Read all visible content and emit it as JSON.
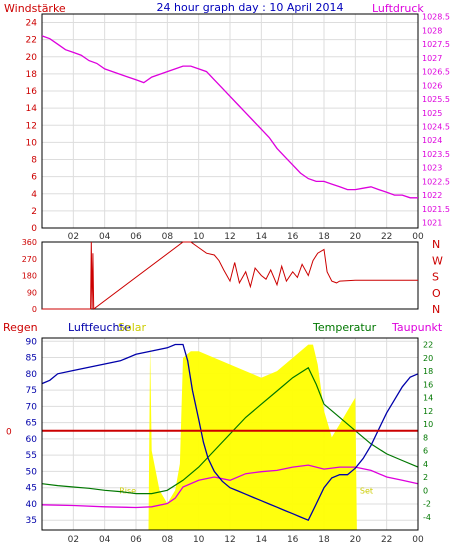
{
  "header": {
    "title": "24 hour graph day : 10 April 2014",
    "left_label": "Windstärke",
    "right_label": "Luftdruck"
  },
  "colors": {
    "pressure": "#dd00dd",
    "wind_dir": "#cc0000",
    "humidity": "#0000aa",
    "solar": "#ffff00",
    "temperature": "#007700",
    "dewpoint": "#dd00dd",
    "rain": "#cc0000",
    "grid": "#dddddd",
    "frame": "#000000",
    "title": "#0000bb"
  },
  "chart_data": [
    {
      "type": "line",
      "panel": "wind-pressure",
      "title": "24 hour graph day : 10 April 2014",
      "x_ticks": [
        "02",
        "04",
        "06",
        "08",
        "10",
        "12",
        "14",
        "16",
        "18",
        "20",
        "22",
        "00"
      ],
      "x_range_hours": [
        0,
        24
      ],
      "grid": true,
      "y_left": {
        "label": "Windstärke",
        "range": [
          0,
          25
        ],
        "ticks": [
          "0",
          "2",
          "4",
          "6",
          "8",
          "10",
          "12",
          "14",
          "16",
          "18",
          "20",
          "22",
          "24"
        ]
      },
      "y_right": {
        "label": "Luftdruck",
        "range": [
          1020.8,
          1028.6
        ],
        "ticks": [
          "1021",
          "1021.5",
          "1022",
          "1022.5",
          "1023",
          "1023.5",
          "1024",
          "1024.5",
          "1025",
          "1025.5",
          "1026",
          "1026.5",
          "1027",
          "1027.5",
          "1028",
          "1028.5"
        ]
      },
      "series": [
        {
          "name": "Luftdruck",
          "axis": "right",
          "x": [
            0,
            0.5,
            1,
            1.5,
            2,
            2.5,
            3,
            3.5,
            4,
            4.5,
            5,
            5.5,
            6,
            6.5,
            7,
            7.5,
            8,
            8.5,
            9,
            9.5,
            10,
            10.5,
            11,
            11.5,
            12,
            12.5,
            13,
            13.5,
            14,
            14.5,
            15,
            15.5,
            16,
            16.5,
            17,
            17.5,
            18,
            18.5,
            19,
            19.5,
            20,
            20.5,
            21,
            21.5,
            22,
            22.5,
            23,
            23.5,
            24
          ],
          "y": [
            1027.8,
            1027.7,
            1027.5,
            1027.3,
            1027.2,
            1027.1,
            1026.9,
            1026.8,
            1026.6,
            1026.5,
            1026.4,
            1026.3,
            1026.2,
            1026.1,
            1026.3,
            1026.4,
            1026.5,
            1026.6,
            1026.7,
            1026.7,
            1026.6,
            1026.5,
            1026.2,
            1025.9,
            1025.6,
            1025.3,
            1025.0,
            1024.7,
            1024.4,
            1024.1,
            1023.7,
            1023.4,
            1023.1,
            1022.8,
            1022.6,
            1022.5,
            1022.5,
            1022.4,
            1022.3,
            1022.2,
            1022.2,
            1022.25,
            1022.3,
            1022.2,
            1022.1,
            1022.0,
            1022.0,
            1021.9,
            1021.9
          ]
        }
      ]
    },
    {
      "type": "line",
      "panel": "wind-direction",
      "x_range_hours": [
        0,
        24
      ],
      "grid": false,
      "y_left": {
        "range": [
          0,
          360
        ],
        "ticks": [
          "0",
          "90",
          "180",
          "270",
          "360"
        ]
      },
      "compass_labels": [
        "N",
        "W",
        "S",
        "O",
        "N"
      ],
      "series": [
        {
          "name": "Windrichtung",
          "x": [
            0,
            3.1,
            3.15,
            3.2,
            3.25,
            3.3,
            9.0,
            9.5,
            10.0,
            10.5,
            11.0,
            11.3,
            11.6,
            12.0,
            12.3,
            12.6,
            13.0,
            13.3,
            13.6,
            14.0,
            14.3,
            14.6,
            15.0,
            15.3,
            15.6,
            16.0,
            16.3,
            16.6,
            17.0,
            17.3,
            17.6,
            18.0,
            18.2,
            18.5,
            18.8,
            19.0,
            20.0,
            21.0,
            22.0,
            23.0,
            24.0
          ],
          "y": [
            0,
            0,
            360,
            0,
            300,
            0,
            360,
            360,
            330,
            300,
            290,
            260,
            210,
            150,
            250,
            140,
            200,
            120,
            220,
            180,
            160,
            210,
            130,
            230,
            150,
            200,
            170,
            240,
            180,
            260,
            300,
            320,
            200,
            150,
            140,
            150,
            155,
            155,
            155,
            155,
            155
          ]
        }
      ]
    },
    {
      "type": "line",
      "panel": "rain-humidity-temperature",
      "x_ticks": [
        "02",
        "04",
        "06",
        "08",
        "10",
        "12",
        "14",
        "16",
        "18",
        "20",
        "22",
        "00"
      ],
      "x_range_hours": [
        0,
        24
      ],
      "grid": true,
      "labels": {
        "rain": "Regen",
        "humidity": "Luftfeuchte",
        "solar": "Solar",
        "temperature": "Temperatur",
        "dewpoint": "Taupunkt"
      },
      "y_humidity": {
        "range": [
          32,
          91
        ],
        "ticks": [
          "35",
          "40",
          "45",
          "50",
          "55",
          "60",
          "65",
          "70",
          "75",
          "80",
          "85",
          "90"
        ]
      },
      "y_temperature": {
        "range": [
          -6,
          23
        ],
        "ticks": [
          "-4",
          "-2",
          "0",
          "2",
          "4",
          "6",
          "8",
          "10",
          "12",
          "14",
          "16",
          "18",
          "20",
          "22"
        ]
      },
      "rain_label": "0",
      "rain_value": 0,
      "sun_markers": {
        "rise_label": "Rise",
        "set_label": "Set",
        "rise_time": 6.9,
        "set_time": 20.1
      },
      "series": [
        {
          "name": "Luftfeuchte",
          "axis": "humidity",
          "x": [
            0,
            0.5,
            1,
            2,
            3,
            4,
            5,
            6,
            7,
            8,
            8.5,
            9,
            9.3,
            9.6,
            10,
            10.3,
            10.6,
            11,
            11.5,
            12,
            12.5,
            13,
            13.5,
            14,
            14.5,
            15,
            15.5,
            16,
            16.5,
            17,
            17.5,
            18,
            18.5,
            19,
            19.5,
            20,
            20.5,
            21,
            21.5,
            22,
            22.5,
            23,
            23.5,
            24
          ],
          "y": [
            77,
            78,
            80,
            81,
            82,
            83,
            84,
            86,
            87,
            88,
            89,
            89,
            84,
            75,
            66,
            59,
            54,
            50,
            47,
            45,
            44,
            43,
            42,
            41,
            40,
            39,
            38,
            37,
            36,
            35,
            40,
            45,
            48,
            49,
            49,
            51,
            54,
            58,
            63,
            68,
            72,
            76,
            79,
            80
          ]
        },
        {
          "name": "Temperatur",
          "axis": "temperature",
          "x": [
            0,
            1,
            2,
            3,
            4,
            5,
            6,
            7,
            8,
            9,
            10,
            11,
            12,
            13,
            14,
            15,
            16,
            17,
            17.5,
            18,
            19,
            20,
            21,
            22,
            23,
            24
          ],
          "y": [
            1.0,
            0.7,
            0.5,
            0.3,
            0.0,
            -0.2,
            -0.5,
            -0.5,
            0.0,
            1.5,
            3.5,
            6.0,
            8.5,
            11.0,
            13.0,
            15.0,
            17.0,
            18.5,
            16.0,
            13.0,
            11.0,
            9.0,
            7.0,
            5.5,
            4.5,
            3.5
          ]
        },
        {
          "name": "Taupunkt",
          "axis": "temperature",
          "x": [
            0,
            2,
            4,
            6,
            7,
            8,
            8.5,
            9,
            10,
            11,
            12,
            13,
            14,
            15,
            16,
            17,
            18,
            19,
            20,
            21,
            22,
            23,
            24
          ],
          "y": [
            -2.2,
            -2.3,
            -2.5,
            -2.6,
            -2.5,
            -2.0,
            -1.2,
            0.5,
            1.5,
            2.0,
            1.5,
            2.5,
            2.8,
            3.0,
            3.5,
            3.8,
            3.2,
            3.5,
            3.5,
            3.0,
            2.0,
            1.5,
            1.0
          ]
        },
        {
          "name": "Solar",
          "axis": "temperature",
          "x": [
            0,
            6.8,
            6.9,
            7.0,
            7.5,
            8.0,
            8.5,
            8.8,
            9.0,
            9.5,
            10.0,
            11.0,
            12.0,
            13.0,
            14.0,
            15.0,
            16.0,
            16.5,
            17.0,
            17.3,
            17.6,
            18.0,
            18.5,
            19.0,
            19.5,
            20.0,
            20.1,
            24
          ],
          "y": [
            -6,
            -6,
            22,
            6,
            0,
            -2,
            0,
            4,
            20,
            21,
            21,
            20,
            19,
            18,
            17,
            18,
            20,
            21,
            22,
            22,
            19,
            12,
            8,
            10,
            12,
            14,
            -6,
            -6
          ]
        }
      ]
    }
  ]
}
